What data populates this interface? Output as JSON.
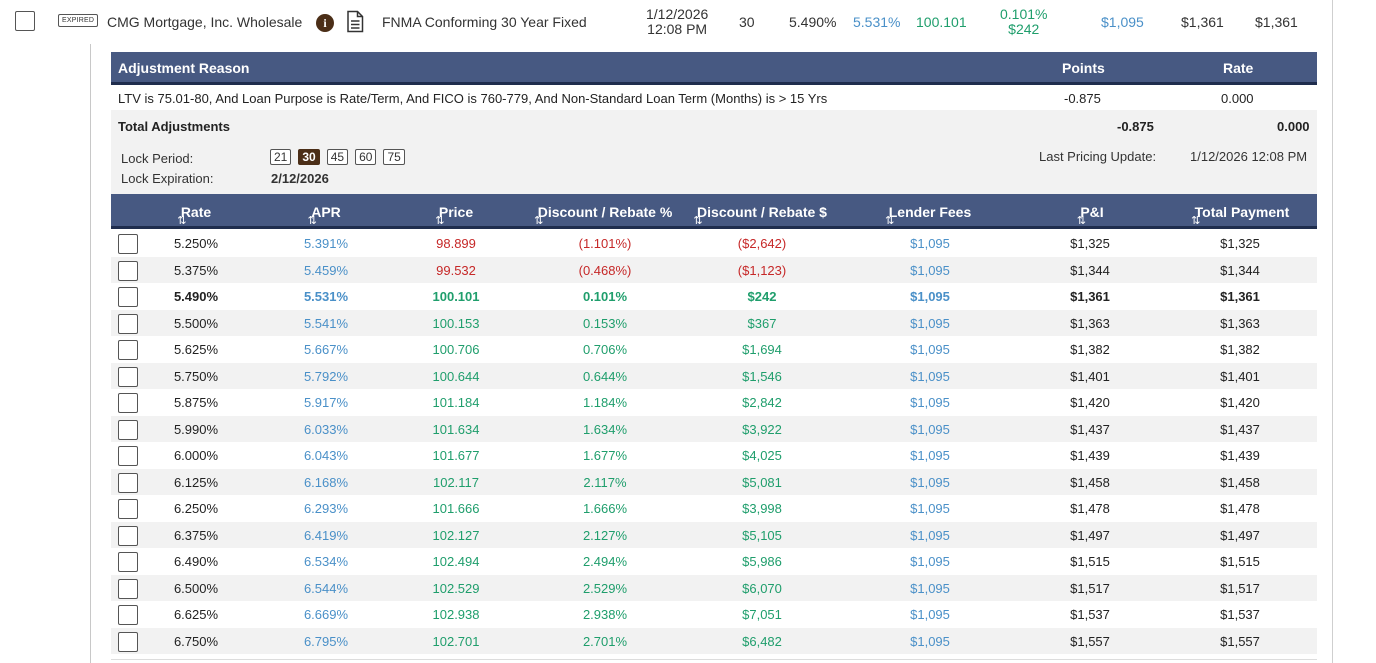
{
  "top_row": {
    "expired_badge": "EXPIRED",
    "lender": "CMG Mortgage, Inc. Wholesale",
    "product": "FNMA Conforming 30 Year Fixed",
    "date": "1/12/2026",
    "time": "12:08 PM",
    "term": "30",
    "rate": "5.490%",
    "apr": "5.531%",
    "price": "100.101",
    "discount_pct": "0.101%",
    "discount_amt": "$242",
    "lender_fees": "$1,095",
    "pi": "$1,361",
    "total_payment": "$1,361"
  },
  "adjustments": {
    "header_reason": "Adjustment Reason",
    "header_points": "Points",
    "header_rate": "Rate",
    "rows": [
      {
        "reason": "LTV is 75.01-80, And Loan Purpose is Rate/Term, And FICO is 760-779, And Non-Standard Loan Term (Months) is > 15 Yrs",
        "points": "-0.875",
        "rate": "0.000"
      }
    ],
    "total_label": "Total Adjustments",
    "total_points": "-0.875",
    "total_rate": "0.000"
  },
  "lock": {
    "period_label": "Lock Period:",
    "expiration_label": "Lock Expiration:",
    "expiration_value": "2/12/2026",
    "options": [
      "21",
      "30",
      "45",
      "60",
      "75"
    ],
    "selected": "30",
    "last_update_label": "Last Pricing Update:",
    "last_update_value": "1/12/2026 12:08 PM"
  },
  "rate_table": {
    "sort_icon_rate": "⇅",
    "sort_icon": "⇅",
    "headers": {
      "rate": "Rate",
      "apr": "APR",
      "price": "Price",
      "discount_pct": "Discount / Rebate %",
      "discount_amt": "Discount / Rebate $",
      "lender_fees": "Lender Fees",
      "pi": "P&I",
      "total_payment": "Total Payment"
    },
    "rows": [
      {
        "rate": "5.250%",
        "apr": "5.391%",
        "price": "98.899",
        "disc_pct": "(1.101%)",
        "disc_amt": "($2,642)",
        "fees": "$1,095",
        "pi": "$1,325",
        "total": "$1,325"
      },
      {
        "rate": "5.375%",
        "apr": "5.459%",
        "price": "99.532",
        "disc_pct": "(0.468%)",
        "disc_amt": "($1,123)",
        "fees": "$1,095",
        "pi": "$1,344",
        "total": "$1,344"
      },
      {
        "rate": "5.490%",
        "apr": "5.531%",
        "price": "100.101",
        "disc_pct": "0.101%",
        "disc_amt": "$242",
        "fees": "$1,095",
        "pi": "$1,361",
        "total": "$1,361"
      },
      {
        "rate": "5.500%",
        "apr": "5.541%",
        "price": "100.153",
        "disc_pct": "0.153%",
        "disc_amt": "$367",
        "fees": "$1,095",
        "pi": "$1,363",
        "total": "$1,363"
      },
      {
        "rate": "5.625%",
        "apr": "5.667%",
        "price": "100.706",
        "disc_pct": "0.706%",
        "disc_amt": "$1,694",
        "fees": "$1,095",
        "pi": "$1,382",
        "total": "$1,382"
      },
      {
        "rate": "5.750%",
        "apr": "5.792%",
        "price": "100.644",
        "disc_pct": "0.644%",
        "disc_amt": "$1,546",
        "fees": "$1,095",
        "pi": "$1,401",
        "total": "$1,401"
      },
      {
        "rate": "5.875%",
        "apr": "5.917%",
        "price": "101.184",
        "disc_pct": "1.184%",
        "disc_amt": "$2,842",
        "fees": "$1,095",
        "pi": "$1,420",
        "total": "$1,420"
      },
      {
        "rate": "5.990%",
        "apr": "6.033%",
        "price": "101.634",
        "disc_pct": "1.634%",
        "disc_amt": "$3,922",
        "fees": "$1,095",
        "pi": "$1,437",
        "total": "$1,437"
      },
      {
        "rate": "6.000%",
        "apr": "6.043%",
        "price": "101.677",
        "disc_pct": "1.677%",
        "disc_amt": "$4,025",
        "fees": "$1,095",
        "pi": "$1,439",
        "total": "$1,439"
      },
      {
        "rate": "6.125%",
        "apr": "6.168%",
        "price": "102.117",
        "disc_pct": "2.117%",
        "disc_amt": "$5,081",
        "fees": "$1,095",
        "pi": "$1,458",
        "total": "$1,458"
      },
      {
        "rate": "6.250%",
        "apr": "6.293%",
        "price": "101.666",
        "disc_pct": "1.666%",
        "disc_amt": "$3,998",
        "fees": "$1,095",
        "pi": "$1,478",
        "total": "$1,478"
      },
      {
        "rate": "6.375%",
        "apr": "6.419%",
        "price": "102.127",
        "disc_pct": "2.127%",
        "disc_amt": "$5,105",
        "fees": "$1,095",
        "pi": "$1,497",
        "total": "$1,497"
      },
      {
        "rate": "6.490%",
        "apr": "6.534%",
        "price": "102.494",
        "disc_pct": "2.494%",
        "disc_amt": "$5,986",
        "fees": "$1,095",
        "pi": "$1,515",
        "total": "$1,515"
      },
      {
        "rate": "6.500%",
        "apr": "6.544%",
        "price": "102.529",
        "disc_pct": "2.529%",
        "disc_amt": "$6,070",
        "fees": "$1,095",
        "pi": "$1,517",
        "total": "$1,517"
      },
      {
        "rate": "6.625%",
        "apr": "6.669%",
        "price": "102.938",
        "disc_pct": "2.938%",
        "disc_amt": "$7,051",
        "fees": "$1,095",
        "pi": "$1,537",
        "total": "$1,537"
      },
      {
        "rate": "6.750%",
        "apr": "6.795%",
        "price": "102.701",
        "disc_pct": "2.701%",
        "disc_amt": "$6,482",
        "fees": "$1,095",
        "pi": "$1,557",
        "total": "$1,557"
      }
    ],
    "highlight_row": 2
  },
  "colors": {
    "header_bg": "#475982",
    "accent_brown": "#4b2e17",
    "apr_blue": "#4a90c8",
    "positive_green": "#1f9e6c",
    "negative_red": "#c62828"
  }
}
